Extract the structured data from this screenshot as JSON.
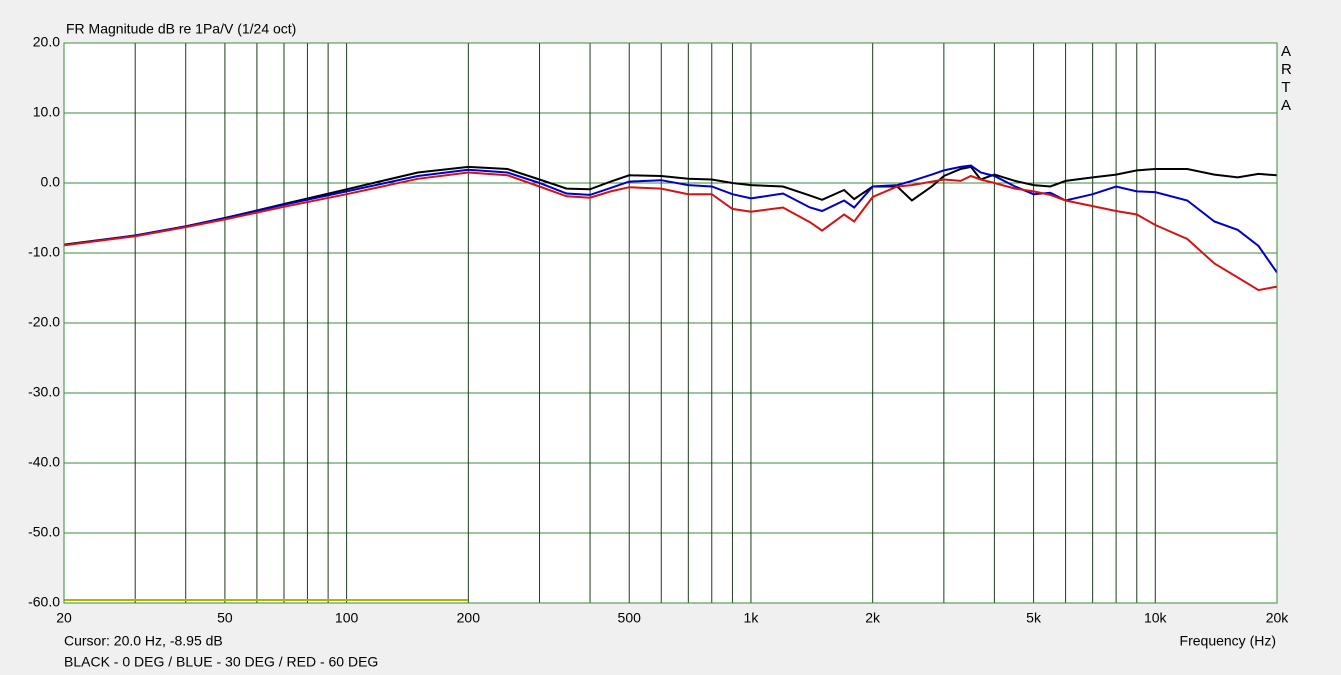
{
  "chart_data": {
    "type": "line",
    "title": "FR Magnitude dB re 1Pa/V (1/24 oct)",
    "brand": "ARTA",
    "cursor_text": "Cursor: 20.0 Hz, -8.95 dB",
    "x_label": "Frequency (Hz)",
    "note": "BLACK - 0 DEG / BLUE - 30 DEG / RED - 60 DEG",
    "x_scale": "log",
    "grid": true,
    "xlim": [
      20,
      20000
    ],
    "ylim": [
      -60,
      20
    ],
    "xticks": [
      20,
      50,
      100,
      200,
      500,
      {
        "value": 1000,
        "label": "1k"
      },
      {
        "value": 2000,
        "label": "2k"
      },
      {
        "value": 5000,
        "label": "5k"
      },
      {
        "value": 10000,
        "label": "10k"
      },
      {
        "value": 20000,
        "label": "20k"
      }
    ],
    "xminor": [
      30,
      40,
      60,
      70,
      80,
      90,
      300,
      400,
      600,
      700,
      800,
      900,
      3000,
      4000,
      6000,
      7000,
      8000,
      9000
    ],
    "yticks": [
      {
        "value": 20,
        "label": "20.0"
      },
      {
        "value": 10,
        "label": "10.0"
      },
      {
        "value": 0,
        "label": "0.0"
      },
      {
        "value": -10,
        "label": "-10.0"
      },
      {
        "value": -20,
        "label": "-20.0"
      },
      {
        "value": -30,
        "label": "-30.0"
      },
      {
        "value": -40,
        "label": "-40.0"
      },
      {
        "value": -50,
        "label": "-50.0"
      },
      {
        "value": -60,
        "label": "-60.0"
      }
    ],
    "x": [
      20,
      30,
      40,
      50,
      70,
      100,
      150,
      200,
      250,
      300,
      350,
      400,
      450,
      500,
      600,
      700,
      800,
      900,
      1000,
      1200,
      1400,
      1500,
      1700,
      1800,
      2000,
      2300,
      2500,
      2800,
      3000,
      3300,
      3500,
      3700,
      4000,
      4500,
      5000,
      5500,
      6000,
      7000,
      8000,
      9000,
      10000,
      12000,
      14000,
      16000,
      18000,
      20000
    ],
    "series": [
      {
        "color": "#000000",
        "values": [
          -8.8,
          -7.5,
          -6.2,
          -5,
          -3,
          -0.9,
          1.5,
          2.3,
          2.0,
          0.5,
          -0.8,
          -0.9,
          0.2,
          1.1,
          1.0,
          0.6,
          0.5,
          0,
          -0.3,
          -0.5,
          -1.8,
          -2.4,
          -1,
          -2.3,
          -0.5,
          -0.5,
          -2.5,
          -0.5,
          1,
          2.0,
          2.3,
          0.5,
          1.2,
          0.3,
          -0.3,
          -0.5,
          0.3,
          0.8,
          1.2,
          1.8,
          2,
          2.0,
          1.2,
          0.8,
          1.3,
          1.1
        ]
      },
      {
        "color": "#0000c8",
        "values": [
          -8.9,
          -7.5,
          -6.2,
          -5.0,
          -3.1,
          -1.2,
          1.0,
          1.9,
          1.5,
          0,
          -1.5,
          -1.7,
          -0.7,
          0.2,
          0.4,
          -0.3,
          -0.5,
          -1.6,
          -2.2,
          -1.5,
          -3.5,
          -4.0,
          -2.5,
          -3.5,
          -0.5,
          -0.3,
          0.3,
          1.2,
          1.8,
          2.3,
          2.5,
          1.5,
          1.0,
          -0.5,
          -1.6,
          -1.4,
          -2.5,
          -1.6,
          -0.5,
          -1.2,
          -1.3,
          -2.5,
          -5.5,
          -6.7,
          -9,
          -12.8
        ]
      },
      {
        "color": "#d21414",
        "values": [
          -8.9,
          -7.6,
          -6.3,
          -5.2,
          -3.4,
          -1.6,
          0.6,
          1.5,
          1.1,
          -0.5,
          -1.9,
          -2.1,
          -1.2,
          -0.6,
          -0.8,
          -1.6,
          -1.6,
          -3.7,
          -4.1,
          -3.5,
          -5.6,
          -6.8,
          -4.5,
          -5.5,
          -2.0,
          -0.5,
          -0.3,
          0.2,
          0.5,
          0.3,
          1.0,
          0.5,
          0,
          -0.8,
          -1.2,
          -1.7,
          -2.5,
          -3.3,
          -4.0,
          -4.5,
          -6.0,
          -8.0,
          -11.5,
          -13.5,
          -15.3,
          -14.8
        ]
      }
    ]
  }
}
